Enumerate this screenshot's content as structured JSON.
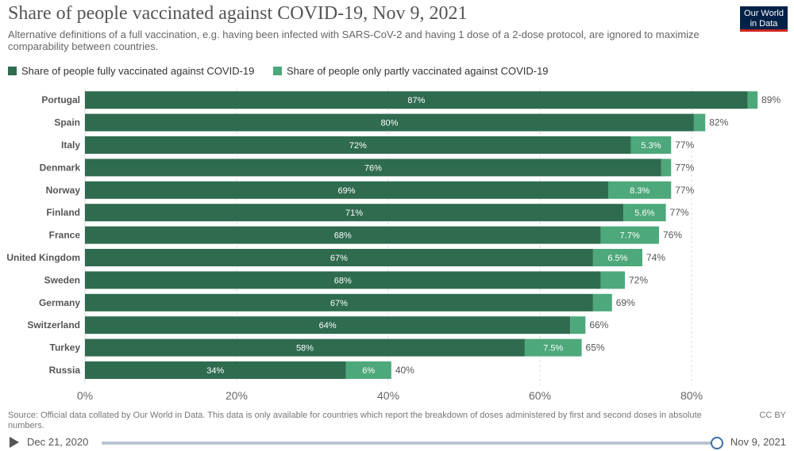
{
  "title": "Share of people vaccinated against COVID-19, Nov 9, 2021",
  "subtitle": "Alternative definitions of a full vaccination, e.g. having been infected with SARS-CoV-2 and having 1 dose of a 2-dose protocol, are ignored to maximize comparability between countries.",
  "logo": {
    "line1": "Our World",
    "line2": "in Data"
  },
  "colors": {
    "full": "#2e6b4f",
    "partial": "#4da87b",
    "grid": "#dddddd",
    "axis_text": "#666666"
  },
  "chart_data": {
    "type": "bar",
    "orientation": "horizontal",
    "stacked": true,
    "xlim": [
      0,
      89
    ],
    "xticks": [
      0,
      20,
      40,
      60,
      80
    ],
    "xtick_labels": [
      "0%",
      "20%",
      "40%",
      "60%",
      "80%"
    ],
    "grid": true,
    "legend_position": "top-left",
    "categories": [
      "Portugal",
      "Spain",
      "Italy",
      "Denmark",
      "Norway",
      "Finland",
      "France",
      "United Kingdom",
      "Sweden",
      "Germany",
      "Switzerland",
      "Turkey",
      "Russia"
    ],
    "series": [
      {
        "name": "Share of people fully vaccinated against COVID-19",
        "values": [
          87.4,
          80.3,
          72,
          76,
          69,
          71,
          68,
          67,
          68,
          67,
          64,
          58,
          34.4
        ],
        "labels": [
          "87%",
          "80%",
          "72%",
          "76%",
          "69%",
          "71%",
          "68%",
          "67%",
          "68%",
          "67%",
          "64%",
          "58%",
          "34%"
        ]
      },
      {
        "name": "Share of people only partly vaccinated against COVID-19",
        "values": [
          1.3,
          1.5,
          5.3,
          1.3,
          8.3,
          5.6,
          7.7,
          6.5,
          3.2,
          2.5,
          2.0,
          7.5,
          6.0
        ],
        "labels": [
          "",
          "",
          "5.3%",
          "",
          "8.3%",
          "5.6%",
          "7.7%",
          "6.5%",
          "",
          "",
          "",
          "7.5%",
          "6%"
        ]
      }
    ],
    "totals": [
      "89%",
      "82%",
      "77%",
      "77%",
      "77%",
      "77%",
      "76%",
      "74%",
      "72%",
      "69%",
      "66%",
      "65%",
      "40%"
    ]
  },
  "footer": {
    "source": "Source: Official data collated by Our World in Data. This data is only available for countries which report the breakdown of doses administered by first and second doses in absolute numbers.",
    "license": "CC BY"
  },
  "timeline": {
    "start": "Dec 21, 2020",
    "end": "Nov 9, 2021",
    "position": 1.0
  }
}
